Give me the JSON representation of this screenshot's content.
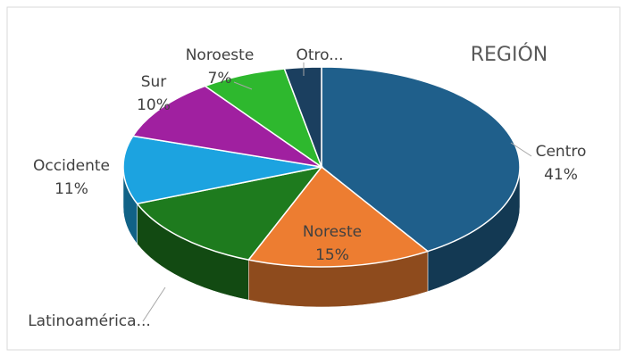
{
  "chart_data": {
    "type": "pie3d",
    "title": "REGIÓN",
    "categories": [
      "Centro",
      "Noreste",
      "Latinoamérica...",
      "Occidente",
      "Sur",
      "Noroeste",
      "Otro..."
    ],
    "values": [
      41,
      15,
      13,
      11,
      10,
      7,
      3
    ],
    "value_labels": [
      "41%",
      "15%",
      null,
      "11%",
      "10%",
      "7%",
      null
    ],
    "colors": [
      "#1f5f8b",
      "#ed7d31",
      "#1e7b1e",
      "#1ca3e0",
      "#a020a0",
      "#2eb82e",
      "#1b3f5f"
    ]
  }
}
